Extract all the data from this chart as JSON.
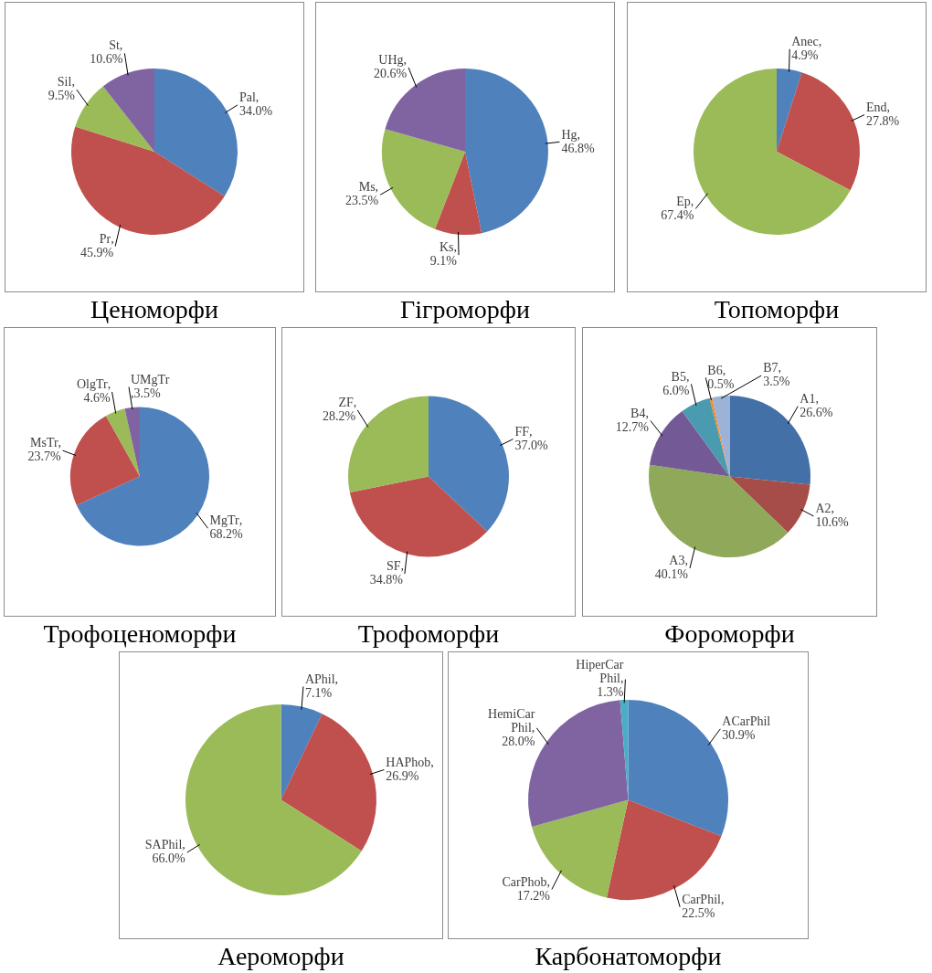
{
  "chart_data": [
    {
      "type": "pie",
      "title": "Ценоморфи",
      "categories": [
        "Pal",
        "Pr",
        "Sil",
        "St"
      ],
      "values": [
        34.0,
        45.9,
        9.5,
        10.6
      ],
      "value_labels": [
        ", 34.0%",
        ", 45.9%",
        ", 9.5%",
        ", 10.6%"
      ],
      "colors": [
        "#4f81bd",
        "#c0504d",
        "#9bbb59",
        "#8064a2"
      ]
    },
    {
      "type": "pie",
      "title": "Гігроморфи",
      "categories": [
        "Hg",
        "Ks",
        "Ms",
        "UHg"
      ],
      "values": [
        46.8,
        9.1,
        23.5,
        20.6
      ],
      "value_labels": [
        ", 46.8%",
        ", 9.1%",
        ", 23.5%",
        ", 20.6%"
      ],
      "colors": [
        "#4f81bd",
        "#c0504d",
        "#9bbb59",
        "#8064a2"
      ]
    },
    {
      "type": "pie",
      "title": "Топоморфи",
      "categories": [
        "Anec",
        "End",
        "Ep"
      ],
      "values": [
        4.9,
        27.8,
        67.4
      ],
      "value_labels": [
        ", 4.9%",
        ", 27.8%",
        ", 67.4%"
      ],
      "colors": [
        "#4f81bd",
        "#c0504d",
        "#9bbb59"
      ]
    },
    {
      "type": "pie",
      "title": "Трофоценоморфи",
      "categories": [
        "MgTr",
        "MsTr",
        "OlgTr",
        "UMgTr"
      ],
      "values": [
        68.2,
        23.7,
        4.6,
        3.5
      ],
      "value_labels": [
        ", 68.2%",
        ", 23.7%",
        ", 4.6%",
        ",3.5%"
      ],
      "colors": [
        "#4f81bd",
        "#c0504d",
        "#9bbb59",
        "#8064a2"
      ]
    },
    {
      "type": "pie",
      "title": "Трофоморфи",
      "categories": [
        "FF",
        "SF",
        "ZF"
      ],
      "values": [
        37.0,
        34.8,
        28.2
      ],
      "value_labels": [
        ", 37.0%",
        ", 34.8%",
        ", 28.2%"
      ],
      "colors": [
        "#4f81bd",
        "#c0504d",
        "#9bbb59"
      ]
    },
    {
      "type": "pie",
      "title": "Фороморфи",
      "categories": [
        "A1",
        "A2",
        "A3",
        "B4",
        "B5",
        "B6",
        "B7"
      ],
      "values": [
        26.6,
        10.6,
        40.1,
        12.7,
        6.0,
        0.5,
        3.5
      ],
      "value_labels": [
        ", 26.6%",
        ", 10.6%",
        ", 40.1%",
        ", 12.7%",
        ", 6.0%",
        ", 0.5%",
        ", 3.5%"
      ],
      "colors": [
        "#4470a8",
        "#a64d4a",
        "#8fa85a",
        "#735a96",
        "#4a9ab0",
        "#f28c28",
        "#9cb2d6"
      ]
    },
    {
      "type": "pie",
      "title": "Аероморфи",
      "categories": [
        "APhil",
        "HAPhob",
        "SAPhil"
      ],
      "values": [
        7.1,
        26.9,
        66.0
      ],
      "value_labels": [
        ", 7.1%",
        ", 26.9%",
        ", 66.0%"
      ],
      "colors": [
        "#4f81bd",
        "#c0504d",
        "#9bbb59"
      ]
    },
    {
      "type": "pie",
      "title": "Карбонатоморфи",
      "categories": [
        "ACarPhil",
        "CarPhil",
        "CarPhob",
        "HemiCarPhil",
        "HiperCarPhil"
      ],
      "values": [
        30.9,
        22.5,
        17.2,
        28.0,
        1.3
      ],
      "value_labels": [
        "30.9%",
        ", 22.5%",
        ", 17.2%",
        ", 28.0%",
        ", 1.3%"
      ],
      "colors": [
        "#4f81bd",
        "#c0504d",
        "#9bbb59",
        "#8064a2",
        "#4bacc6"
      ]
    }
  ]
}
